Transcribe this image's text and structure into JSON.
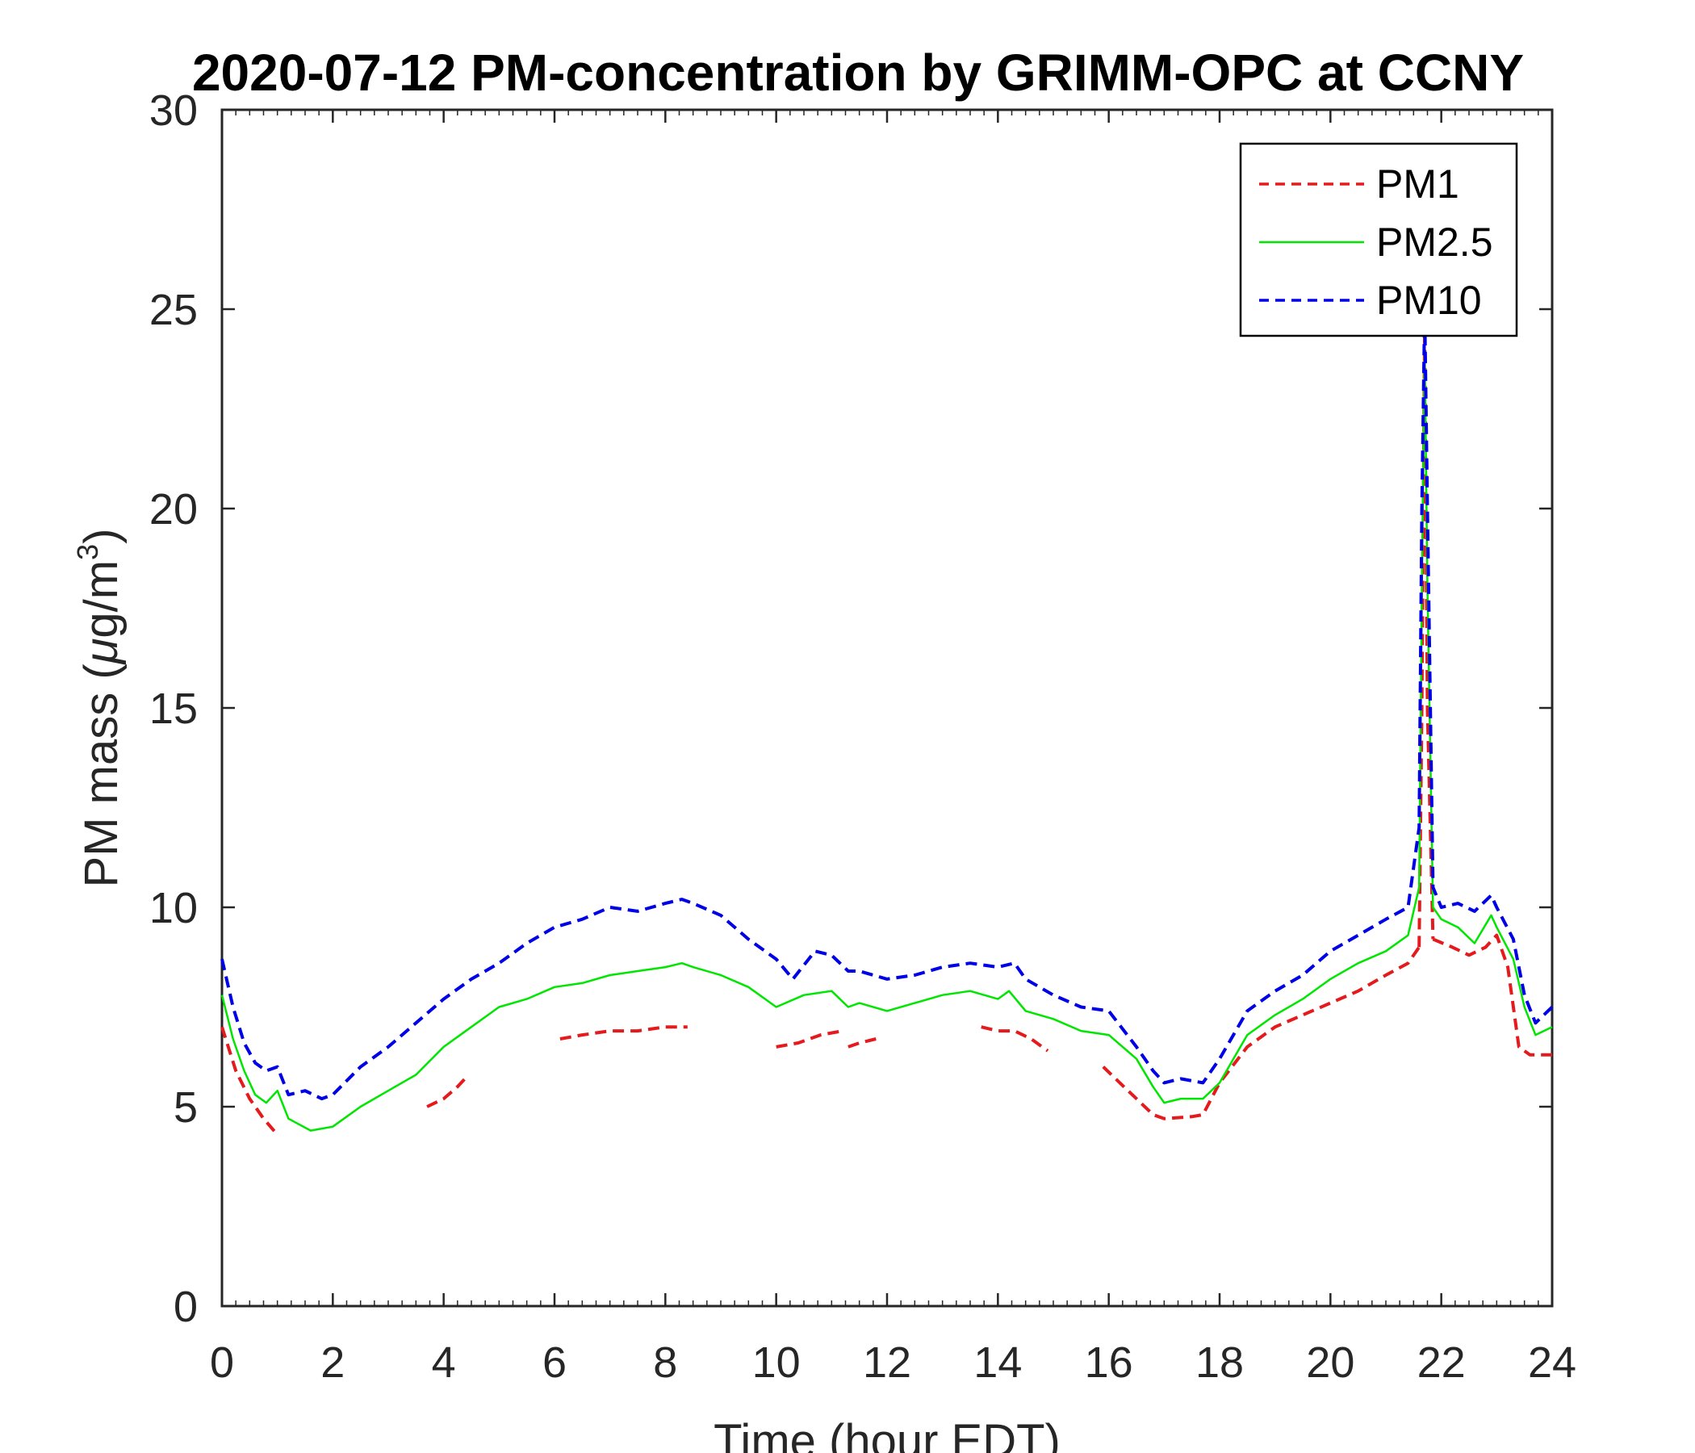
{
  "chart_data": {
    "type": "line",
    "title": "2020-07-12 PM-concentration by GRIMM-OPC at CCNY",
    "xlabel": "Time (hour EDT)",
    "ylabel": "PM mass (μg/m³)",
    "ylabel_parts": {
      "prefix": "PM mass (",
      "mu": "μ",
      "mid": "g/m",
      "sup": "3",
      "suffix": ")"
    },
    "xlim": [
      0,
      24
    ],
    "ylim": [
      0,
      30
    ],
    "xticks": [
      0,
      2,
      4,
      6,
      8,
      10,
      12,
      14,
      16,
      18,
      20,
      22,
      24
    ],
    "yticks": [
      0,
      5,
      10,
      15,
      20,
      25,
      30
    ],
    "legend_position": "top-right",
    "grid": false,
    "series": [
      {
        "name": "PM1",
        "color": "#e41a1c",
        "style": "dashed",
        "segments": [
          {
            "x": [
              0,
              0.25,
              0.5,
              0.75,
              1.0
            ],
            "y": [
              7.0,
              5.9,
              5.2,
              4.7,
              4.3
            ]
          },
          {
            "x": [
              3.7,
              4.0,
              4.25,
              4.45
            ],
            "y": [
              5.0,
              5.2,
              5.5,
              5.8
            ]
          },
          {
            "x": [
              6.1,
              6.5,
              7.0,
              7.5,
              8.0,
              8.4
            ],
            "y": [
              6.7,
              6.8,
              6.9,
              6.9,
              7.0,
              7.0
            ]
          },
          {
            "x": [
              10.0,
              10.4,
              10.8,
              11.2
            ],
            "y": [
              6.5,
              6.6,
              6.8,
              6.9
            ]
          },
          {
            "x": [
              11.3,
              11.5,
              11.8
            ],
            "y": [
              6.5,
              6.6,
              6.7
            ]
          },
          {
            "x": [
              13.7,
              14.0,
              14.3,
              14.6,
              14.9
            ],
            "y": [
              7.0,
              6.9,
              6.9,
              6.7,
              6.4
            ]
          },
          {
            "x": [
              15.9,
              16.2,
              16.5,
              16.8,
              17.0,
              17.5,
              17.7,
              18.0,
              18.5,
              19.0,
              19.5,
              20.0,
              20.5,
              21.0,
              21.4,
              21.6
            ],
            "y": [
              6.0,
              5.6,
              5.2,
              4.8,
              4.7,
              4.75,
              4.8,
              5.6,
              6.5,
              7.0,
              7.3,
              7.6,
              7.9,
              8.3,
              8.6,
              9.0
            ]
          },
          {
            "x": [
              21.6,
              21.65,
              21.7,
              21.75,
              21.85
            ],
            "y": [
              9.0,
              15.0,
              24.5,
              15.0,
              9.2
            ]
          },
          {
            "x": [
              21.85,
              22.2,
              22.5,
              22.8,
              23.0,
              23.2,
              23.4,
              23.6,
              24.0
            ],
            "y": [
              9.2,
              9.0,
              8.8,
              9.0,
              9.3,
              8.5,
              6.5,
              6.3,
              6.3
            ]
          }
        ]
      },
      {
        "name": "PM2.5",
        "color": "#00e600",
        "style": "solid",
        "segments": [
          {
            "x": [
              0,
              0.2,
              0.4,
              0.6,
              0.8,
              1.0,
              1.2,
              1.6,
              2.0,
              2.5,
              3.0,
              3.5,
              4.0,
              4.5,
              5.0,
              5.5,
              6.0,
              6.5,
              7.0,
              7.5,
              8.0,
              8.3,
              8.5,
              9.0,
              9.5,
              10.0,
              10.5,
              11.0,
              11.3,
              11.5,
              12.0,
              12.5,
              13.0,
              13.5,
              14.0,
              14.2,
              14.5,
              15.0,
              15.5,
              16.0,
              16.5,
              16.8,
              17.0,
              17.3,
              17.7,
              18.0,
              18.5,
              19.0,
              19.5,
              20.0,
              20.5,
              21.0,
              21.4,
              21.6,
              21.65,
              21.7,
              21.75,
              21.85,
              22.0,
              22.3,
              22.6,
              22.9,
              23.0,
              23.3,
              23.5,
              23.7,
              24.0
            ],
            "y": [
              7.8,
              6.7,
              5.9,
              5.3,
              5.1,
              5.4,
              4.7,
              4.4,
              4.5,
              5.0,
              5.4,
              5.8,
              6.5,
              7.0,
              7.5,
              7.7,
              8.0,
              8.1,
              8.3,
              8.4,
              8.5,
              8.6,
              8.5,
              8.3,
              8.0,
              7.5,
              7.8,
              7.9,
              7.5,
              7.6,
              7.4,
              7.6,
              7.8,
              7.9,
              7.7,
              7.9,
              7.4,
              7.2,
              6.9,
              6.8,
              6.2,
              5.5,
              5.1,
              5.2,
              5.2,
              5.6,
              6.8,
              7.3,
              7.7,
              8.2,
              8.6,
              8.9,
              9.3,
              10.5,
              18.0,
              24.0,
              18.0,
              10.0,
              9.7,
              9.5,
              9.1,
              9.8,
              9.5,
              8.7,
              7.5,
              6.8,
              7.0
            ]
          }
        ]
      },
      {
        "name": "PM10",
        "color": "#0000e6",
        "style": "dashed",
        "segments": [
          {
            "x": [
              0,
              0.2,
              0.4,
              0.6,
              0.8,
              1.0,
              1.2,
              1.5,
              1.8,
              2.0,
              2.5,
              3.0,
              3.5,
              4.0,
              4.5,
              5.0,
              5.5,
              6.0,
              6.5,
              7.0,
              7.5,
              8.0,
              8.3,
              8.5,
              9.0,
              9.5,
              10.0,
              10.3,
              10.7,
              11.0,
              11.3,
              11.5,
              12.0,
              12.5,
              13.0,
              13.5,
              14.0,
              14.3,
              14.5,
              15.0,
              15.5,
              16.0,
              16.5,
              16.8,
              17.0,
              17.3,
              17.7,
              18.0,
              18.5,
              19.0,
              19.5,
              20.0,
              20.5,
              21.0,
              21.4,
              21.6,
              21.65,
              21.7,
              21.75,
              21.85,
              22.0,
              22.3,
              22.6,
              22.9,
              23.0,
              23.3,
              23.5,
              23.7,
              24.0
            ],
            "y": [
              8.7,
              7.5,
              6.6,
              6.1,
              5.9,
              6.0,
              5.3,
              5.4,
              5.2,
              5.3,
              6.0,
              6.5,
              7.1,
              7.7,
              8.2,
              8.6,
              9.1,
              9.5,
              9.7,
              10.0,
              9.9,
              10.1,
              10.2,
              10.1,
              9.8,
              9.2,
              8.7,
              8.2,
              8.9,
              8.8,
              8.4,
              8.4,
              8.2,
              8.3,
              8.5,
              8.6,
              8.5,
              8.6,
              8.2,
              7.8,
              7.5,
              7.4,
              6.5,
              5.9,
              5.6,
              5.7,
              5.6,
              6.2,
              7.4,
              7.9,
              8.3,
              8.9,
              9.3,
              9.7,
              10.0,
              12.0,
              20.0,
              25.0,
              20.0,
              10.5,
              10.0,
              10.1,
              9.9,
              10.3,
              10.0,
              9.2,
              7.8,
              7.1,
              7.5
            ]
          }
        ]
      }
    ]
  }
}
